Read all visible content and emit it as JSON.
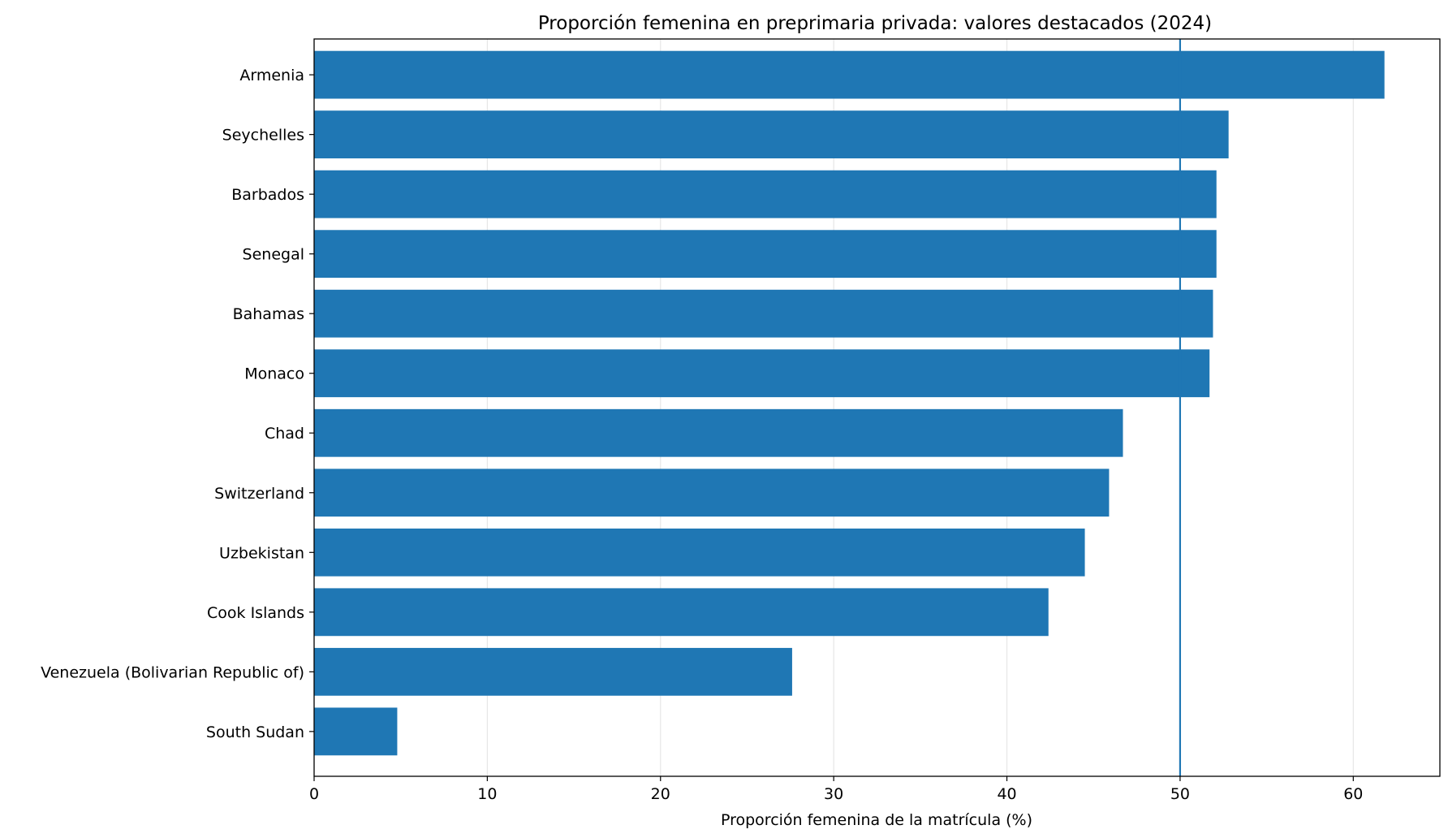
{
  "chart_data": {
    "type": "bar",
    "orientation": "horizontal",
    "title": "Proporción femenina en preprimaria privada: valores destacados (2024)",
    "xlabel": "Proporción femenina de la matrícula (%)",
    "ylabel": "",
    "xlim": [
      0,
      65
    ],
    "xticks": [
      0,
      10,
      20,
      30,
      40,
      50,
      60
    ],
    "grid": "vertical",
    "reference_line": 50,
    "bar_color": "#1f77b4",
    "reference_line_color": "#1f77b4",
    "categories": [
      "Armenia",
      "Seychelles",
      "Barbados",
      "Senegal",
      "Bahamas",
      "Monaco",
      "Chad",
      "Switzerland",
      "Uzbekistan",
      "Cook Islands",
      "Venezuela (Bolivarian Republic of)",
      "South Sudan"
    ],
    "values": [
      61.8,
      52.8,
      52.1,
      52.1,
      51.9,
      51.7,
      46.7,
      45.9,
      44.5,
      42.4,
      27.6,
      4.8
    ]
  }
}
